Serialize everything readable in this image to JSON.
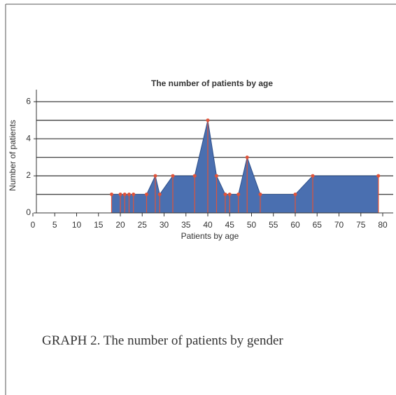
{
  "chart_data": {
    "type": "area",
    "title": "The number of patients by age",
    "x_label": "Patients by age",
    "y_label": "Number of patients",
    "x": [
      18,
      20,
      21,
      22,
      23,
      26,
      28,
      29,
      32,
      37,
      40,
      42,
      44,
      45,
      47,
      49,
      52,
      60,
      64,
      79
    ],
    "values": [
      1,
      1,
      1,
      1,
      1,
      1,
      2,
      1,
      2,
      2,
      5,
      2,
      1,
      1,
      1,
      3,
      1,
      1,
      2,
      2
    ],
    "color": "#4a6fb0",
    "marker_color": "#e0533a",
    "xlim": [
      0,
      80
    ],
    "xticks": [
      0,
      5,
      10,
      15,
      20,
      25,
      30,
      35,
      40,
      45,
      50,
      55,
      60,
      65,
      70,
      75,
      80
    ],
    "ylim": [
      0,
      6.5
    ],
    "yticks": [
      0,
      2,
      4,
      6
    ],
    "ygrid": [
      1,
      2,
      3,
      4,
      5,
      6
    ]
  },
  "caption": "GRAPH 2. The number of patients by gender"
}
